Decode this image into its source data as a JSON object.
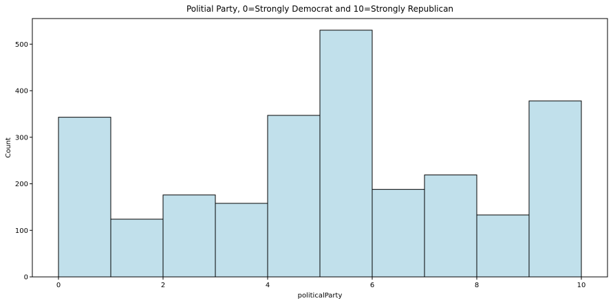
{
  "chart_data": {
    "type": "bar",
    "title": "Politial Party, 0=Strongly Democrat and 10=Strongly Republican",
    "xlabel": "politicalParty",
    "ylabel": "Count",
    "bins": [
      {
        "start": 0,
        "end": 1,
        "count": 343
      },
      {
        "start": 1,
        "end": 2,
        "count": 124
      },
      {
        "start": 2,
        "end": 3,
        "count": 176
      },
      {
        "start": 3,
        "end": 4,
        "count": 158
      },
      {
        "start": 4,
        "end": 5,
        "count": 347
      },
      {
        "start": 5,
        "end": 6,
        "count": 530
      },
      {
        "start": 6,
        "end": 7,
        "count": 188
      },
      {
        "start": 7,
        "end": 8,
        "count": 219
      },
      {
        "start": 8,
        "end": 9,
        "count": 133
      },
      {
        "start": 9,
        "end": 10,
        "count": 378
      }
    ],
    "xlim": [
      -0.5,
      10.5
    ],
    "ylim": [
      0,
      555
    ],
    "xticks": [
      "0",
      "2",
      "4",
      "6",
      "8",
      "10"
    ],
    "yticks": [
      "0",
      "100",
      "200",
      "300",
      "400",
      "500"
    ],
    "bar_color": "#c1e0eb",
    "edge_color": "#000000",
    "grid": false,
    "legend": "none"
  }
}
